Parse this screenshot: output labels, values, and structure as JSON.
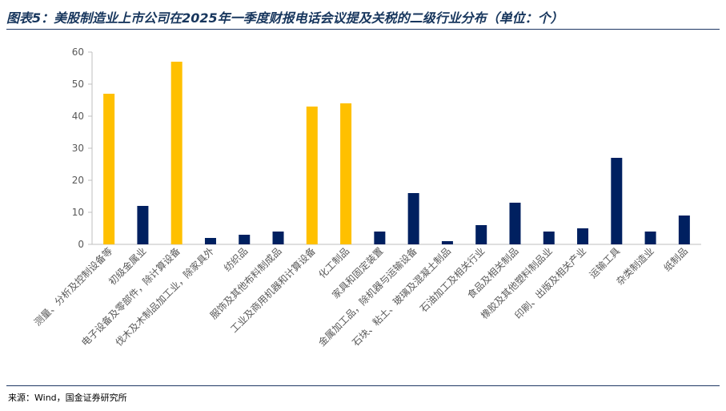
{
  "chart_data": {
    "type": "bar",
    "title": "图表5：美股制造业上市公司在2025年一季度财报电话会议提及关税的二级行业分布（单位：个）",
    "categories": [
      "测量、分析及控制设备等",
      "初级金属业",
      "电子设备及零部件，除计算设备",
      "伐木及木制品加工业，除家具外",
      "纺织品",
      "服饰及其他布料制成品",
      "工业及商用机器和计算设备",
      "化工制品",
      "家具和固定装置",
      "金属加工品，除机器与运输设备",
      "石块、粘土、玻璃及混凝土制品",
      "石油加工及相关行业",
      "食品及相关制品",
      "橡胶及其他塑料制品业",
      "印刷、出版及相关产业",
      "运输工具",
      "杂类制造业",
      "纸制品"
    ],
    "values": [
      47,
      12,
      57,
      2,
      3,
      4,
      43,
      44,
      4,
      16,
      1,
      6,
      13,
      4,
      5,
      27,
      4,
      9
    ],
    "bar_colors": [
      "#FFC000",
      "#002060",
      "#FFC000",
      "#002060",
      "#002060",
      "#002060",
      "#FFC000",
      "#FFC000",
      "#002060",
      "#002060",
      "#002060",
      "#002060",
      "#002060",
      "#002060",
      "#002060",
      "#002060",
      "#002060",
      "#002060"
    ],
    "ylim": [
      0,
      60
    ],
    "yticks": [
      0,
      10,
      20,
      30,
      40,
      50,
      60
    ],
    "grid": false,
    "show_legend": false,
    "axis_color": "#BFBFBF",
    "title_color": "#17365D"
  },
  "source": "来源：Wind，国金证券研究所"
}
